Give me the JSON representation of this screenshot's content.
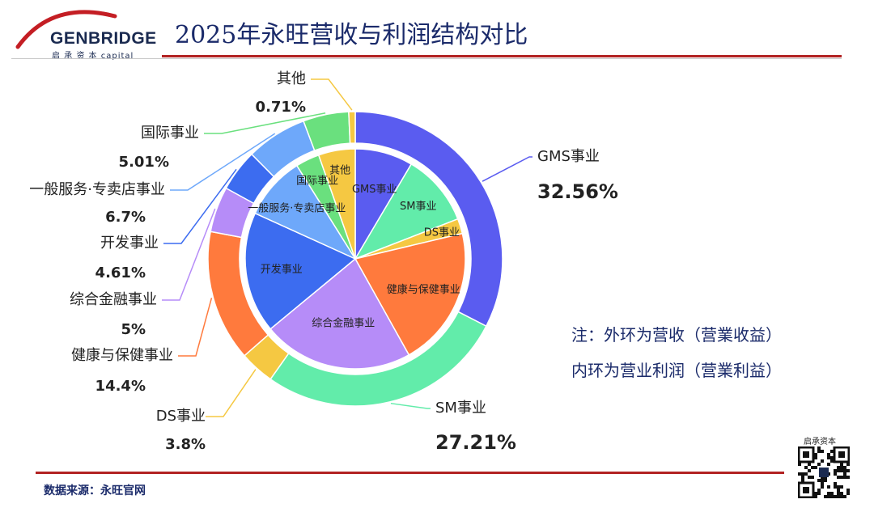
{
  "header": {
    "logo_name": "GENBRIDGE",
    "logo_sub": "启 承 资 本 capital",
    "title": "2025年永旺营收与利润结构对比"
  },
  "notes": {
    "line1": "注：外环为营收（营業收益）",
    "line2": "内环为营业利润（营業利益）"
  },
  "footer": {
    "source": "数据来源：永旺官网",
    "qr_label": "启承资本"
  },
  "colors": {
    "accent_red": "#b22222",
    "title_navy": "#1a2a6a"
  },
  "chart_data": {
    "type": "donut",
    "outer_ring_series": "营收（营業收益）",
    "inner_ring_series": "营业利润（营業利益）",
    "outer": [
      {
        "name": "GMS事业",
        "value": 32.56,
        "label": "32.56%",
        "color": "#5a5cf0"
      },
      {
        "name": "SM事业",
        "value": 27.21,
        "label": "27.21%",
        "color": "#62ecaa"
      },
      {
        "name": "DS事业",
        "value": 3.8,
        "label": "3.8%",
        "color": "#f5c842"
      },
      {
        "name": "健康与保健事业",
        "value": 14.4,
        "label": "14.4%",
        "color": "#ff7a3d"
      },
      {
        "name": "综合金融事业",
        "value": 5,
        "label": "5%",
        "color": "#b68cf8"
      },
      {
        "name": "开发事业",
        "value": 4.61,
        "label": "4.61%",
        "color": "#3c6cf0"
      },
      {
        "name": "一般服务·专卖店事业",
        "value": 6.7,
        "label": "6.7%",
        "color": "#6ea8fa"
      },
      {
        "name": "国际事业",
        "value": 5.01,
        "label": "5.01%",
        "color": "#6ae07e"
      },
      {
        "name": "其他",
        "value": 0.71,
        "label": "0.71%",
        "color": "#f5c842"
      }
    ],
    "inner": [
      {
        "name": "GMS事业",
        "value": 8.5,
        "color": "#5a5cf0"
      },
      {
        "name": "SM事业",
        "value": 10.6,
        "color": "#62ecaa"
      },
      {
        "name": "DS事业",
        "value": 2.2,
        "color": "#f5c842"
      },
      {
        "name": "健康与保健事业",
        "value": 20.6,
        "color": "#ff7a3d"
      },
      {
        "name": "综合金融事业",
        "value": 22.1,
        "color": "#b68cf8"
      },
      {
        "name": "开发事业",
        "value": 17.8,
        "color": "#3c6cf0"
      },
      {
        "name": "一般服务·专卖店事业",
        "value": 9.3,
        "color": "#6ea8fa"
      },
      {
        "name": "国际事业",
        "value": 3.5,
        "color": "#6ae07e"
      },
      {
        "name": "其他",
        "value": 5.4,
        "color": "#f5c842"
      }
    ]
  }
}
